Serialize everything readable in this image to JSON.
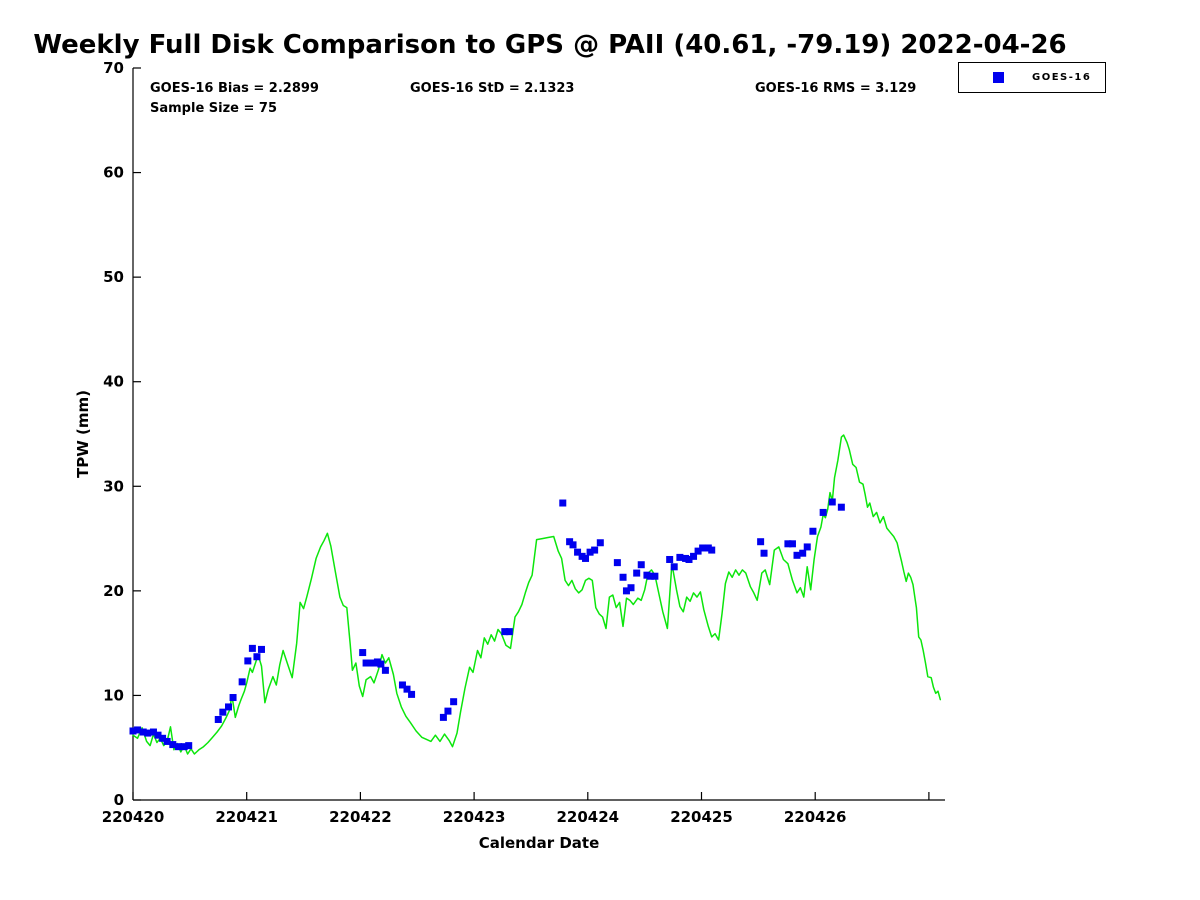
{
  "title": "Weekly Full Disk Comparison to GPS @ PAII (40.61, -79.19) 2022-04-26",
  "annotations": {
    "bias": "GOES-16 Bias = 2.2899",
    "std": "GOES-16 StD = 2.1323",
    "rms": "GOES-16 RMS = 3.129",
    "sample_size": "Sample Size = 75"
  },
  "legend": {
    "entries": [
      {
        "label": "GOES-16",
        "marker": "square",
        "color": "#0000ee"
      }
    ]
  },
  "colors": {
    "gps_line": "#0ce60c",
    "goes16_marker": "#0000ee",
    "axis": "#000000"
  },
  "chart_data": {
    "type": "line",
    "title": "Weekly Full Disk Comparison to GPS @ PAII (40.61, -79.19) 2022-04-26",
    "xlabel": "Calendar Date",
    "ylabel": "TPW (mm)",
    "ylim": [
      0,
      70
    ],
    "xlim_days": [
      0,
      7.15
    ],
    "grid": false,
    "legend_position": "top-right",
    "yticks": [
      0,
      10,
      20,
      30,
      40,
      50,
      60,
      70
    ],
    "xticks": [
      {
        "pos": 0,
        "label": "220420"
      },
      {
        "pos": 1,
        "label": "220421"
      },
      {
        "pos": 2,
        "label": "220422"
      },
      {
        "pos": 3,
        "label": "220423"
      },
      {
        "pos": 4,
        "label": "220424"
      },
      {
        "pos": 5,
        "label": "220425"
      },
      {
        "pos": 6,
        "label": "220426"
      },
      {
        "pos": 7,
        "label": ""
      }
    ],
    "x_units": "days after 220420",
    "series": [
      {
        "name": "GPS",
        "type": "line",
        "color": "#0ce60c",
        "points": [
          [
            0.0,
            6.2
          ],
          [
            0.04,
            5.9
          ],
          [
            0.08,
            6.9
          ],
          [
            0.12,
            5.6
          ],
          [
            0.15,
            5.2
          ],
          [
            0.18,
            6.3
          ],
          [
            0.21,
            5.5
          ],
          [
            0.24,
            5.9
          ],
          [
            0.27,
            5.2
          ],
          [
            0.3,
            5.6
          ],
          [
            0.33,
            7.0
          ],
          [
            0.36,
            4.8
          ],
          [
            0.39,
            5.4
          ],
          [
            0.42,
            4.6
          ],
          [
            0.45,
            5.2
          ],
          [
            0.48,
            4.4
          ],
          [
            0.51,
            4.9
          ],
          [
            0.54,
            4.4
          ],
          [
            0.58,
            4.8
          ],
          [
            0.62,
            5.1
          ],
          [
            0.66,
            5.5
          ],
          [
            0.7,
            6.0
          ],
          [
            0.74,
            6.5
          ],
          [
            0.78,
            7.1
          ],
          [
            0.82,
            7.9
          ],
          [
            0.85,
            8.6
          ],
          [
            0.87,
            10.0
          ],
          [
            0.9,
            7.9
          ],
          [
            0.93,
            9.0
          ],
          [
            0.95,
            9.6
          ],
          [
            0.98,
            10.4
          ],
          [
            1.0,
            11.2
          ],
          [
            1.03,
            12.6
          ],
          [
            1.05,
            12.2
          ],
          [
            1.08,
            13.2
          ],
          [
            1.1,
            13.9
          ],
          [
            1.13,
            12.8
          ],
          [
            1.16,
            9.3
          ],
          [
            1.19,
            10.6
          ],
          [
            1.23,
            11.8
          ],
          [
            1.26,
            11.0
          ],
          [
            1.29,
            12.9
          ],
          [
            1.32,
            14.3
          ],
          [
            1.36,
            13.0
          ],
          [
            1.4,
            11.7
          ],
          [
            1.44,
            15.0
          ],
          [
            1.47,
            18.9
          ],
          [
            1.5,
            18.3
          ],
          [
            1.53,
            19.5
          ],
          [
            1.57,
            21.2
          ],
          [
            1.61,
            23.1
          ],
          [
            1.65,
            24.2
          ],
          [
            1.68,
            24.8
          ],
          [
            1.71,
            25.5
          ],
          [
            1.74,
            24.3
          ],
          [
            1.78,
            21.8
          ],
          [
            1.82,
            19.4
          ],
          [
            1.85,
            18.6
          ],
          [
            1.88,
            18.4
          ],
          [
            1.91,
            14.9
          ],
          [
            1.93,
            12.4
          ],
          [
            1.96,
            13.1
          ],
          [
            1.99,
            10.9
          ],
          [
            2.02,
            9.9
          ],
          [
            2.05,
            11.5
          ],
          [
            2.09,
            11.8
          ],
          [
            2.12,
            11.2
          ],
          [
            2.16,
            12.5
          ],
          [
            2.19,
            13.9
          ],
          [
            2.22,
            13.1
          ],
          [
            2.25,
            13.6
          ],
          [
            2.29,
            12.0
          ],
          [
            2.32,
            10.2
          ],
          [
            2.36,
            8.9
          ],
          [
            2.4,
            8.0
          ],
          [
            2.44,
            7.4
          ],
          [
            2.49,
            6.6
          ],
          [
            2.54,
            6.0
          ],
          [
            2.58,
            5.8
          ],
          [
            2.62,
            5.6
          ],
          [
            2.66,
            6.2
          ],
          [
            2.7,
            5.6
          ],
          [
            2.74,
            6.3
          ],
          [
            2.78,
            5.7
          ],
          [
            2.81,
            5.1
          ],
          [
            2.85,
            6.4
          ],
          [
            2.88,
            8.4
          ],
          [
            2.92,
            10.7
          ],
          [
            2.96,
            12.7
          ],
          [
            2.99,
            12.2
          ],
          [
            3.03,
            14.3
          ],
          [
            3.06,
            13.6
          ],
          [
            3.09,
            15.5
          ],
          [
            3.12,
            14.9
          ],
          [
            3.15,
            15.8
          ],
          [
            3.18,
            15.2
          ],
          [
            3.21,
            16.3
          ],
          [
            3.24,
            15.9
          ],
          [
            3.28,
            14.8
          ],
          [
            3.32,
            14.5
          ],
          [
            3.36,
            17.5
          ],
          [
            3.39,
            18.0
          ],
          [
            3.42,
            18.7
          ],
          [
            3.45,
            19.8
          ],
          [
            3.48,
            20.8
          ],
          [
            3.51,
            21.5
          ],
          [
            3.55,
            24.9
          ],
          [
            3.6,
            25.0
          ],
          [
            3.65,
            25.1
          ],
          [
            3.7,
            25.2
          ],
          [
            3.74,
            23.8
          ],
          [
            3.77,
            23.1
          ],
          [
            3.8,
            21.0
          ],
          [
            3.83,
            20.5
          ],
          [
            3.86,
            21.0
          ],
          [
            3.89,
            20.2
          ],
          [
            3.92,
            19.8
          ],
          [
            3.95,
            20.1
          ],
          [
            3.98,
            21.0
          ],
          [
            4.01,
            21.2
          ],
          [
            4.04,
            21.0
          ],
          [
            4.07,
            18.4
          ],
          [
            4.1,
            17.8
          ],
          [
            4.13,
            17.5
          ],
          [
            4.16,
            16.4
          ],
          [
            4.19,
            19.4
          ],
          [
            4.22,
            19.6
          ],
          [
            4.25,
            18.4
          ],
          [
            4.28,
            18.9
          ],
          [
            4.31,
            16.6
          ],
          [
            4.34,
            19.3
          ],
          [
            4.37,
            19.1
          ],
          [
            4.4,
            18.7
          ],
          [
            4.44,
            19.3
          ],
          [
            4.47,
            19.1
          ],
          [
            4.5,
            20.1
          ],
          [
            4.53,
            21.7
          ],
          [
            4.56,
            22.0
          ],
          [
            4.59,
            21.5
          ],
          [
            4.63,
            19.5
          ],
          [
            4.66,
            18.0
          ],
          [
            4.7,
            16.4
          ],
          [
            4.74,
            22.6
          ],
          [
            4.78,
            20.1
          ],
          [
            4.81,
            18.5
          ],
          [
            4.84,
            18.0
          ],
          [
            4.87,
            19.4
          ],
          [
            4.9,
            19.0
          ],
          [
            4.93,
            19.8
          ],
          [
            4.96,
            19.4
          ],
          [
            4.99,
            19.9
          ],
          [
            5.02,
            18.2
          ],
          [
            5.06,
            16.6
          ],
          [
            5.09,
            15.6
          ],
          [
            5.12,
            15.9
          ],
          [
            5.15,
            15.3
          ],
          [
            5.18,
            17.8
          ],
          [
            5.21,
            20.7
          ],
          [
            5.24,
            21.8
          ],
          [
            5.27,
            21.3
          ],
          [
            5.3,
            22.0
          ],
          [
            5.33,
            21.5
          ],
          [
            5.36,
            22.0
          ],
          [
            5.39,
            21.7
          ],
          [
            5.43,
            20.4
          ],
          [
            5.46,
            19.8
          ],
          [
            5.49,
            19.1
          ],
          [
            5.53,
            21.7
          ],
          [
            5.56,
            22.0
          ],
          [
            5.6,
            20.6
          ],
          [
            5.64,
            23.9
          ],
          [
            5.68,
            24.2
          ],
          [
            5.72,
            23.0
          ],
          [
            5.76,
            22.6
          ],
          [
            5.8,
            21.0
          ],
          [
            5.84,
            19.8
          ],
          [
            5.87,
            20.3
          ],
          [
            5.9,
            19.4
          ],
          [
            5.93,
            22.3
          ],
          [
            5.96,
            20.1
          ],
          [
            5.99,
            23.0
          ],
          [
            6.02,
            25.2
          ],
          [
            6.05,
            26.1
          ],
          [
            6.07,
            27.3
          ],
          [
            6.09,
            27.0
          ],
          [
            6.11,
            27.8
          ],
          [
            6.13,
            29.4
          ],
          [
            6.15,
            28.6
          ],
          [
            6.17,
            30.8
          ],
          [
            6.2,
            32.5
          ],
          [
            6.23,
            34.7
          ],
          [
            6.25,
            34.9
          ],
          [
            6.28,
            34.2
          ],
          [
            6.3,
            33.5
          ],
          [
            6.33,
            32.1
          ],
          [
            6.36,
            31.8
          ],
          [
            6.39,
            30.4
          ],
          [
            6.42,
            30.2
          ],
          [
            6.44,
            29.2
          ],
          [
            6.46,
            28.0
          ],
          [
            6.48,
            28.4
          ],
          [
            6.51,
            27.1
          ],
          [
            6.54,
            27.5
          ],
          [
            6.57,
            26.5
          ],
          [
            6.6,
            27.1
          ],
          [
            6.63,
            26.0
          ],
          [
            6.66,
            25.6
          ],
          [
            6.69,
            25.2
          ],
          [
            6.72,
            24.6
          ],
          [
            6.74,
            23.7
          ],
          [
            6.76,
            22.8
          ],
          [
            6.78,
            21.8
          ],
          [
            6.8,
            20.9
          ],
          [
            6.82,
            21.7
          ],
          [
            6.84,
            21.3
          ],
          [
            6.86,
            20.6
          ],
          [
            6.88,
            19.1
          ],
          [
            6.89,
            18.4
          ],
          [
            6.91,
            15.6
          ],
          [
            6.93,
            15.3
          ],
          [
            6.95,
            14.3
          ],
          [
            6.97,
            13.1
          ],
          [
            6.99,
            11.8
          ],
          [
            7.02,
            11.7
          ],
          [
            7.04,
            10.8
          ],
          [
            7.06,
            10.2
          ],
          [
            7.08,
            10.4
          ],
          [
            7.1,
            9.6
          ]
        ]
      },
      {
        "name": "GOES-16",
        "type": "scatter",
        "color": "#0000ee",
        "points": [
          [
            0.0,
            6.6
          ],
          [
            0.04,
            6.7
          ],
          [
            0.09,
            6.5
          ],
          [
            0.13,
            6.4
          ],
          [
            0.18,
            6.5
          ],
          [
            0.22,
            6.2
          ],
          [
            0.26,
            5.9
          ],
          [
            0.3,
            5.6
          ],
          [
            0.35,
            5.3
          ],
          [
            0.4,
            5.1
          ],
          [
            0.45,
            5.1
          ],
          [
            0.49,
            5.2
          ],
          [
            0.75,
            7.7
          ],
          [
            0.79,
            8.4
          ],
          [
            0.84,
            8.9
          ],
          [
            0.88,
            9.8
          ],
          [
            0.96,
            11.3
          ],
          [
            1.01,
            13.3
          ],
          [
            1.05,
            14.5
          ],
          [
            1.09,
            13.7
          ],
          [
            1.13,
            14.4
          ],
          [
            2.02,
            14.1
          ],
          [
            2.05,
            13.1
          ],
          [
            2.09,
            13.1
          ],
          [
            2.12,
            13.1
          ],
          [
            2.15,
            13.2
          ],
          [
            2.18,
            13.0
          ],
          [
            2.22,
            12.4
          ],
          [
            2.37,
            11.0
          ],
          [
            2.41,
            10.6
          ],
          [
            2.45,
            10.1
          ],
          [
            2.73,
            7.9
          ],
          [
            2.77,
            8.5
          ],
          [
            2.82,
            9.4
          ],
          [
            3.27,
            16.1
          ],
          [
            3.31,
            16.1
          ],
          [
            3.78,
            28.4
          ],
          [
            3.84,
            24.7
          ],
          [
            3.87,
            24.4
          ],
          [
            3.91,
            23.7
          ],
          [
            3.95,
            23.3
          ],
          [
            3.98,
            23.1
          ],
          [
            4.02,
            23.7
          ],
          [
            4.06,
            23.9
          ],
          [
            4.11,
            24.6
          ],
          [
            4.26,
            22.7
          ],
          [
            4.31,
            21.3
          ],
          [
            4.34,
            20.0
          ],
          [
            4.38,
            20.3
          ],
          [
            4.43,
            21.7
          ],
          [
            4.47,
            22.5
          ],
          [
            4.52,
            21.5
          ],
          [
            4.55,
            21.4
          ],
          [
            4.59,
            21.4
          ],
          [
            4.72,
            23.0
          ],
          [
            4.76,
            22.3
          ],
          [
            4.81,
            23.2
          ],
          [
            4.86,
            23.1
          ],
          [
            4.89,
            23.0
          ],
          [
            4.93,
            23.3
          ],
          [
            4.97,
            23.8
          ],
          [
            5.01,
            24.1
          ],
          [
            5.06,
            24.1
          ],
          [
            5.09,
            23.9
          ],
          [
            5.52,
            24.7
          ],
          [
            5.55,
            23.6
          ],
          [
            5.76,
            24.5
          ],
          [
            5.8,
            24.5
          ],
          [
            5.84,
            23.4
          ],
          [
            5.89,
            23.6
          ],
          [
            5.93,
            24.2
          ],
          [
            5.98,
            25.7
          ],
          [
            6.07,
            27.5
          ],
          [
            6.15,
            28.5
          ],
          [
            6.23,
            28.0
          ]
        ]
      }
    ]
  }
}
